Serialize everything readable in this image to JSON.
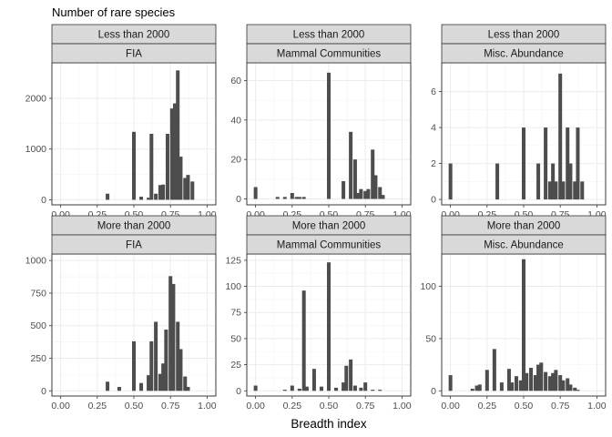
{
  "title": "Number of rare species",
  "chart_data": {
    "type": "bar",
    "title": "Number of rare species",
    "xlabel": "Breadth index",
    "ylabel": "",
    "x_ticks": [
      "0.00",
      "0.25",
      "0.50",
      "0.75",
      "1.00"
    ],
    "xlim": [
      -0.06,
      1.06
    ],
    "bin_width": 0.025,
    "rows": [
      "Less than 2000",
      "More than 2000"
    ],
    "cols": [
      "FIA",
      "Mammal Communities",
      "Misc. Abundance"
    ],
    "panels": [
      {
        "row": "Less than 2000",
        "col": "FIA",
        "ylim": [
          -100,
          2700
        ],
        "y_ticks": [
          0,
          1000,
          2000
        ],
        "bins": [
          [
            0.32,
            120
          ],
          [
            0.5,
            1340
          ],
          [
            0.55,
            60
          ],
          [
            0.6,
            40
          ],
          [
            0.62,
            1300
          ],
          [
            0.65,
            120
          ],
          [
            0.68,
            290
          ],
          [
            0.7,
            300
          ],
          [
            0.73,
            1300
          ],
          [
            0.76,
            1800
          ],
          [
            0.78,
            1900
          ],
          [
            0.8,
            2550
          ],
          [
            0.82,
            850
          ],
          [
            0.85,
            430
          ],
          [
            0.87,
            490
          ],
          [
            0.9,
            360
          ]
        ]
      },
      {
        "row": "Less than 2000",
        "col": "Mammal Communities",
        "ylim": [
          -3,
          69
        ],
        "y_ticks": [
          0,
          20,
          40,
          60
        ],
        "bins": [
          [
            0.0,
            6
          ],
          [
            0.15,
            1
          ],
          [
            0.2,
            1
          ],
          [
            0.25,
            3
          ],
          [
            0.28,
            1
          ],
          [
            0.3,
            1
          ],
          [
            0.33,
            1
          ],
          [
            0.5,
            64
          ],
          [
            0.6,
            9
          ],
          [
            0.65,
            34
          ],
          [
            0.68,
            20
          ],
          [
            0.7,
            3
          ],
          [
            0.72,
            5
          ],
          [
            0.75,
            4
          ],
          [
            0.77,
            5
          ],
          [
            0.8,
            25
          ],
          [
            0.82,
            12
          ],
          [
            0.85,
            6
          ],
          [
            0.87,
            2
          ]
        ]
      },
      {
        "row": "Less than 2000",
        "col": "Misc. Abundance",
        "ylim": [
          -0.3,
          7.6
        ],
        "y_ticks": [
          0,
          2,
          4,
          6
        ],
        "bins": [
          [
            0.0,
            2
          ],
          [
            0.32,
            2
          ],
          [
            0.5,
            4
          ],
          [
            0.6,
            2
          ],
          [
            0.65,
            4
          ],
          [
            0.68,
            1
          ],
          [
            0.7,
            2
          ],
          [
            0.72,
            1
          ],
          [
            0.75,
            7
          ],
          [
            0.77,
            1
          ],
          [
            0.8,
            4
          ],
          [
            0.82,
            2
          ],
          [
            0.85,
            1
          ],
          [
            0.87,
            4
          ],
          [
            0.9,
            1
          ]
        ]
      },
      {
        "row": "More than 2000",
        "col": "FIA",
        "ylim": [
          -40,
          1050
        ],
        "y_ticks": [
          0,
          250,
          500,
          750,
          1000
        ],
        "bins": [
          [
            0.32,
            70
          ],
          [
            0.4,
            30
          ],
          [
            0.5,
            380
          ],
          [
            0.55,
            60
          ],
          [
            0.6,
            120
          ],
          [
            0.62,
            380
          ],
          [
            0.65,
            530
          ],
          [
            0.68,
            130
          ],
          [
            0.7,
            210
          ],
          [
            0.72,
            470
          ],
          [
            0.75,
            880
          ],
          [
            0.77,
            820
          ],
          [
            0.8,
            530
          ],
          [
            0.82,
            320
          ],
          [
            0.85,
            110
          ],
          [
            0.87,
            30
          ]
        ]
      },
      {
        "row": "More than 2000",
        "col": "Mammal Communities",
        "ylim": [
          -5,
          131
        ],
        "y_ticks": [
          0,
          25,
          50,
          75,
          100,
          125
        ],
        "bins": [
          [
            0.0,
            5
          ],
          [
            0.2,
            1
          ],
          [
            0.25,
            5
          ],
          [
            0.3,
            2
          ],
          [
            0.33,
            96
          ],
          [
            0.35,
            4
          ],
          [
            0.4,
            21
          ],
          [
            0.45,
            4
          ],
          [
            0.5,
            123
          ],
          [
            0.55,
            3
          ],
          [
            0.6,
            8
          ],
          [
            0.62,
            24
          ],
          [
            0.65,
            30
          ],
          [
            0.68,
            5
          ],
          [
            0.72,
            3
          ],
          [
            0.75,
            8
          ],
          [
            0.8,
            1
          ],
          [
            0.85,
            1
          ]
        ]
      },
      {
        "row": "More than 2000",
        "col": "Misc. Abundance",
        "ylim": [
          -5,
          131
        ],
        "y_ticks": [
          0,
          50,
          100
        ],
        "bins": [
          [
            0.0,
            15
          ],
          [
            0.15,
            2
          ],
          [
            0.18,
            5
          ],
          [
            0.2,
            6
          ],
          [
            0.25,
            20
          ],
          [
            0.3,
            40
          ],
          [
            0.35,
            8
          ],
          [
            0.4,
            21
          ],
          [
            0.42,
            8
          ],
          [
            0.45,
            14
          ],
          [
            0.48,
            10
          ],
          [
            0.5,
            126
          ],
          [
            0.52,
            17
          ],
          [
            0.55,
            22
          ],
          [
            0.58,
            15
          ],
          [
            0.6,
            25
          ],
          [
            0.62,
            27
          ],
          [
            0.65,
            18
          ],
          [
            0.68,
            14
          ],
          [
            0.7,
            17
          ],
          [
            0.72,
            20
          ],
          [
            0.75,
            15
          ],
          [
            0.77,
            10
          ],
          [
            0.8,
            12
          ],
          [
            0.82,
            6
          ],
          [
            0.85,
            3
          ],
          [
            0.87,
            1
          ]
        ]
      }
    ]
  }
}
